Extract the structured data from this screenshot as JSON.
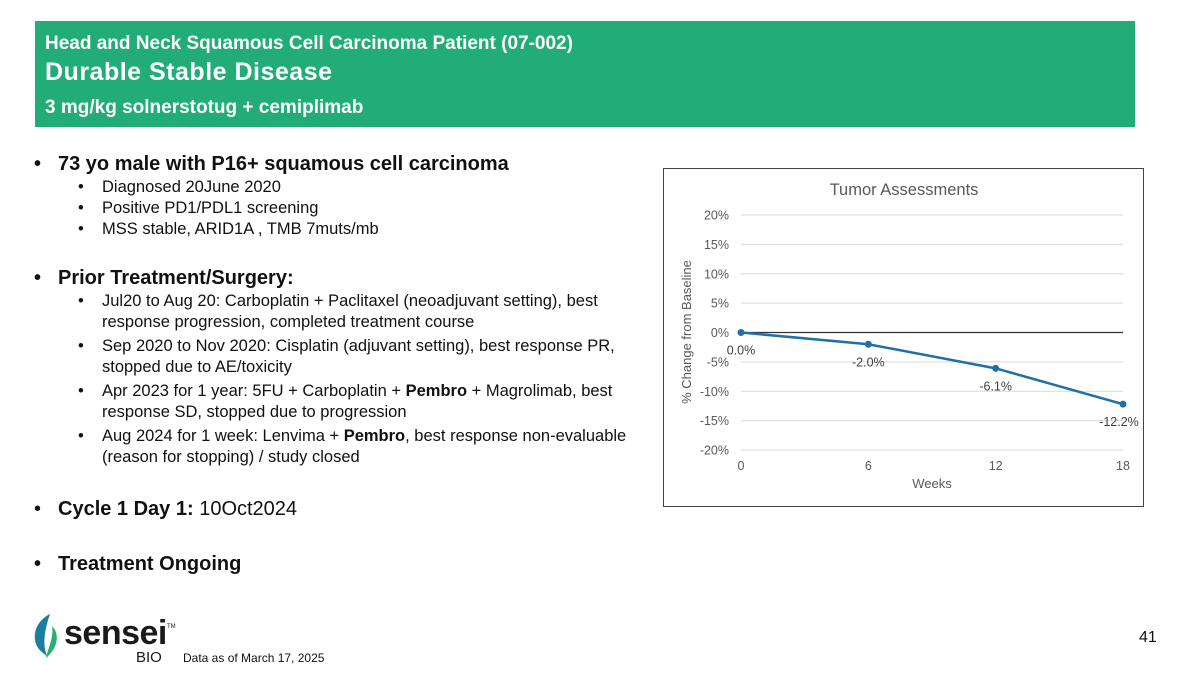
{
  "header": {
    "line1": "Head and Neck Squamous Cell Carcinoma Patient (07-002)",
    "line2": "Durable Stable Disease",
    "line3": "3 mg/kg solnerstotug + cemiplimab"
  },
  "profile": {
    "heading": "73 yo male with P16+ squamous cell carcinoma",
    "items": [
      "Diagnosed 20June 2020",
      "Positive PD1/PDL1 screening",
      "MSS stable, ARID1A , TMB 7muts/mb"
    ]
  },
  "prior": {
    "heading": "Prior Treatment/Surgery:",
    "items": [
      {
        "a": "Jul20 to Aug 20: Carboplatin + Paclitaxel (neoadjuvant setting), best response progression, completed treatment course",
        "b": "",
        "c": ""
      },
      {
        "a": "Sep 2020 to Nov 2020: Cisplatin (adjuvant setting), best response PR, stopped due to AE/toxicity",
        "b": "",
        "c": ""
      },
      {
        "a": "Apr 2023 for 1 year: 5FU + Carboplatin + ",
        "b": "Pembro",
        "c": " + Magrolimab, best response SD, stopped due to progression"
      },
      {
        "a": "Aug 2024 for 1 week: Lenvima + ",
        "b": "Pembro",
        "c": ", best response non-evaluable (reason for stopping) / study closed"
      }
    ]
  },
  "cycle": {
    "label": "Cycle 1 Day 1:",
    "value": " 10Oct2024"
  },
  "ongoing": "Treatment Ongoing",
  "footer": {
    "note": "Data as of March 17, 2025",
    "page": "41"
  },
  "logo": {
    "word": "sensei",
    "sub": "BIO",
    "tm": "TM"
  },
  "chart_data": {
    "type": "line",
    "title": "Tumor Assessments",
    "xlabel": "Weeks",
    "ylabel": "% Change from Baseline",
    "x": [
      0,
      6,
      12,
      18
    ],
    "values": [
      0.0,
      -2.0,
      -6.1,
      -12.2
    ],
    "labels": [
      "0.0%",
      "-2.0%",
      "-6.1%",
      "-12.2%"
    ],
    "xticks": [
      0,
      6,
      12,
      18
    ],
    "xtick_labels": [
      "0",
      "6",
      "12",
      "18"
    ],
    "yticks": [
      20,
      15,
      10,
      5,
      0,
      -5,
      -10,
      -15,
      -20
    ],
    "ytick_labels": [
      "20%",
      "15%",
      "10%",
      "5%",
      "0%",
      "-5%",
      "-10%",
      "-15%",
      "-20%"
    ],
    "xlim": [
      0,
      18
    ],
    "ylim": [
      -20,
      20
    ],
    "grid": true,
    "line_color": "#1f6fa8"
  }
}
